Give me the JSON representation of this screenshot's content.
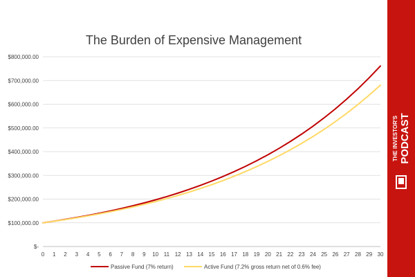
{
  "chart_data": {
    "type": "line",
    "title": "The Burden of Expensive Management",
    "xlabel": "",
    "ylabel": "",
    "x": [
      0,
      1,
      2,
      3,
      4,
      5,
      6,
      7,
      8,
      9,
      10,
      11,
      12,
      13,
      14,
      15,
      16,
      17,
      18,
      19,
      20,
      21,
      22,
      23,
      24,
      25,
      26,
      27,
      28,
      29,
      30
    ],
    "y_ticks": [
      "$-",
      "$100,000.00",
      "$200,000.00",
      "$300,000.00",
      "$400,000.00",
      "$500,000.00",
      "$600,000.00",
      "$700,000.00",
      "$800,000.00"
    ],
    "ylim": [
      0,
      800000
    ],
    "xlim": [
      0,
      30
    ],
    "grid": true,
    "legend_position": "bottom",
    "series": [
      {
        "name": "Passive Fund (7% return)",
        "color": "#c00000",
        "values": [
          100000,
          107000,
          114490,
          122504,
          131080,
          140255,
          150073,
          160578,
          171819,
          183846,
          196715,
          210485,
          225219,
          240985,
          257853,
          275903,
          295216,
          315882,
          337993,
          361653,
          386968,
          414056,
          443040,
          474053,
          507237,
          542743,
          580735,
          621387,
          664884,
          711426,
          761226
        ]
      },
      {
        "name": "Active Fund (7.2% gross return net of 0.6% fee)",
        "color": "#ffd966",
        "values": [
          100000,
          106600,
          113636,
          121136,
          129131,
          137653,
          146739,
          156424,
          166748,
          177753,
          189485,
          201991,
          215322,
          229534,
          244683,
          260832,
          278047,
          296398,
          315961,
          336812,
          359039,
          382736,
          408000,
          434928,
          463634,
          494233,
          526853,
          561625,
          598692,
          638206,
          680327
        ]
      }
    ]
  },
  "brand": {
    "line1": "THE INVESTOR'S",
    "line2": "PODCAST"
  }
}
